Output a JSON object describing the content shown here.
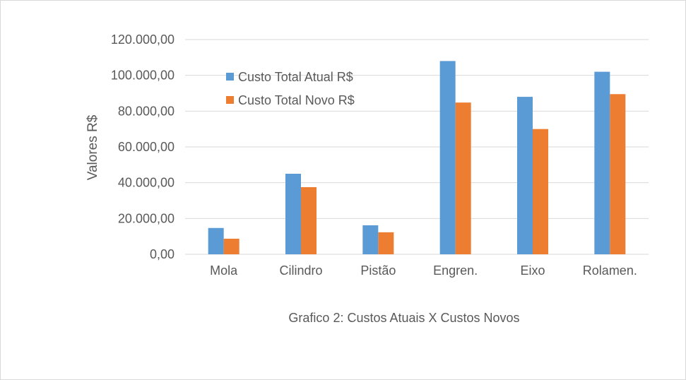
{
  "chart_data": {
    "type": "bar",
    "categories": [
      "Mola",
      "Cilindro",
      "Pistão",
      "Engren.",
      "Eixo",
      "Rolamen."
    ],
    "series": [
      {
        "name": "Custo Total Atual R$",
        "color": "#5b9bd5",
        "values": [
          14700,
          45000,
          16200,
          108000,
          88000,
          102000
        ]
      },
      {
        "name": "Custo Total Novo R$",
        "color": "#ed7d31",
        "values": [
          8700,
          37500,
          12300,
          84800,
          70000,
          89500
        ]
      }
    ],
    "ylabel": "Valores R$",
    "ylim": [
      0,
      120000
    ],
    "yticks": [
      0,
      20000,
      40000,
      60000,
      80000,
      100000,
      120000
    ],
    "ytick_labels": [
      "0,00",
      "20.000,00",
      "40.000,00",
      "60.000,00",
      "80.000,00",
      "100.000,00",
      "120.000,00"
    ],
    "grid": true,
    "legend_position": "top-left",
    "caption": "Grafico 2: Custos Atuais X Custos Novos",
    "gridline_color": "#d9d9d9",
    "axis_color": "#d9d9d9",
    "text_color": "#595959"
  }
}
